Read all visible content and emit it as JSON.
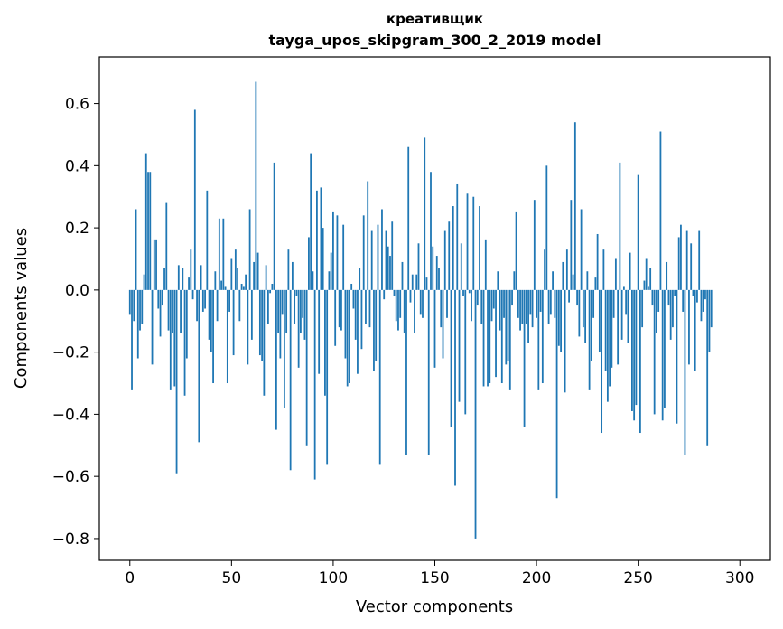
{
  "chart_data": {
    "type": "bar",
    "title": [
      "креативщик",
      "tayga_upos_skipgram_300_2_2019 model"
    ],
    "xlabel": "Vector components",
    "ylabel": "Components values",
    "xlim": [
      -15,
      315
    ],
    "ylim": [
      -0.87,
      0.75
    ],
    "xticks": [
      0,
      50,
      100,
      150,
      200,
      250,
      300
    ],
    "yticks": [
      -0.8,
      -0.6,
      -0.4,
      -0.2,
      0.0,
      0.2,
      0.4,
      0.6
    ],
    "bar_color": "#1f77b4",
    "grid": false,
    "legend": "none",
    "values": [
      -0.08,
      -0.32,
      -0.1,
      0.26,
      -0.22,
      -0.13,
      -0.11,
      0.05,
      0.44,
      0.38,
      0.38,
      -0.24,
      0.16,
      0.16,
      -0.06,
      -0.15,
      -0.05,
      0.07,
      0.28,
      -0.13,
      -0.32,
      -0.14,
      -0.31,
      -0.59,
      0.08,
      -0.14,
      0.07,
      -0.34,
      -0.22,
      0.04,
      0.13,
      -0.03,
      0.58,
      -0.1,
      -0.49,
      0.08,
      -0.07,
      -0.06,
      0.32,
      -0.16,
      -0.2,
      -0.3,
      0.06,
      -0.1,
      0.23,
      0.03,
      0.23,
      0.01,
      -0.3,
      -0.07,
      0.1,
      -0.21,
      0.13,
      0.07,
      -0.1,
      0.02,
      0.01,
      0.05,
      -0.24,
      0.26,
      -0.16,
      0.09,
      0.67,
      0.12,
      -0.21,
      -0.23,
      -0.34,
      0.08,
      -0.11,
      -0.01,
      0.02,
      0.41,
      -0.45,
      -0.14,
      -0.22,
      -0.08,
      -0.38,
      -0.14,
      0.13,
      -0.58,
      0.09,
      -0.11,
      -0.02,
      -0.25,
      -0.14,
      -0.09,
      -0.16,
      -0.5,
      0.17,
      0.44,
      0.06,
      -0.61,
      0.32,
      -0.27,
      0.33,
      0.2,
      -0.34,
      -0.56,
      0.06,
      0.12,
      0.25,
      -0.18,
      0.24,
      -0.12,
      -0.13,
      0.21,
      -0.22,
      -0.31,
      -0.3,
      0.02,
      -0.06,
      -0.16,
      -0.27,
      0.07,
      -0.19,
      0.24,
      -0.11,
      0.35,
      -0.12,
      0.19,
      -0.26,
      -0.23,
      0.21,
      -0.56,
      0.26,
      -0.03,
      0.19,
      0.14,
      0.11,
      0.22,
      -0.02,
      -0.1,
      -0.13,
      -0.09,
      0.09,
      -0.14,
      -0.53,
      0.46,
      -0.04,
      0.05,
      -0.14,
      0.05,
      0.15,
      -0.08,
      -0.09,
      0.49,
      0.04,
      -0.53,
      0.38,
      0.14,
      -0.25,
      0.11,
      0.07,
      -0.12,
      -0.22,
      0.19,
      -0.09,
      0.22,
      -0.44,
      0.27,
      -0.63,
      0.34,
      -0.36,
      0.15,
      -0.02,
      -0.4,
      0.31,
      -0.01,
      -0.1,
      0.3,
      -0.8,
      -0.05,
      0.27,
      -0.11,
      -0.31,
      0.16,
      -0.31,
      -0.3,
      -0.1,
      -0.06,
      -0.28,
      0.06,
      -0.13,
      -0.3,
      -0.09,
      -0.24,
      -0.23,
      -0.32,
      -0.05,
      0.06,
      0.25,
      -0.09,
      -0.13,
      -0.11,
      -0.44,
      -0.11,
      -0.17,
      -0.08,
      -0.12,
      0.29,
      -0.09,
      -0.32,
      -0.07,
      -0.3,
      0.13,
      0.4,
      -0.11,
      -0.08,
      0.06,
      -0.09,
      -0.67,
      -0.18,
      -0.2,
      0.09,
      -0.33,
      0.13,
      -0.04,
      0.29,
      0.05,
      0.54,
      -0.05,
      -0.15,
      0.26,
      -0.12,
      -0.17,
      0.06,
      -0.32,
      -0.23,
      -0.09,
      0.04,
      0.18,
      -0.2,
      -0.46,
      0.13,
      -0.26,
      -0.36,
      -0.31,
      -0.25,
      -0.09,
      0.1,
      -0.24,
      0.41,
      -0.16,
      0.01,
      -0.08,
      -0.17,
      0.12,
      -0.39,
      -0.42,
      -0.37,
      0.37,
      -0.46,
      -0.12,
      0.03,
      0.1,
      0.01,
      0.07,
      -0.05,
      -0.4,
      -0.14,
      -0.07,
      0.51,
      -0.42,
      -0.38,
      0.09,
      -0.05,
      -0.16,
      -0.12,
      -0.02,
      -0.43,
      0.17,
      0.21,
      -0.07,
      -0.53,
      0.19,
      -0.24,
      0.15,
      -0.02,
      -0.26,
      -0.04,
      0.19,
      -0.1,
      -0.07,
      -0.03,
      -0.5,
      -0.2,
      -0.12
    ]
  }
}
